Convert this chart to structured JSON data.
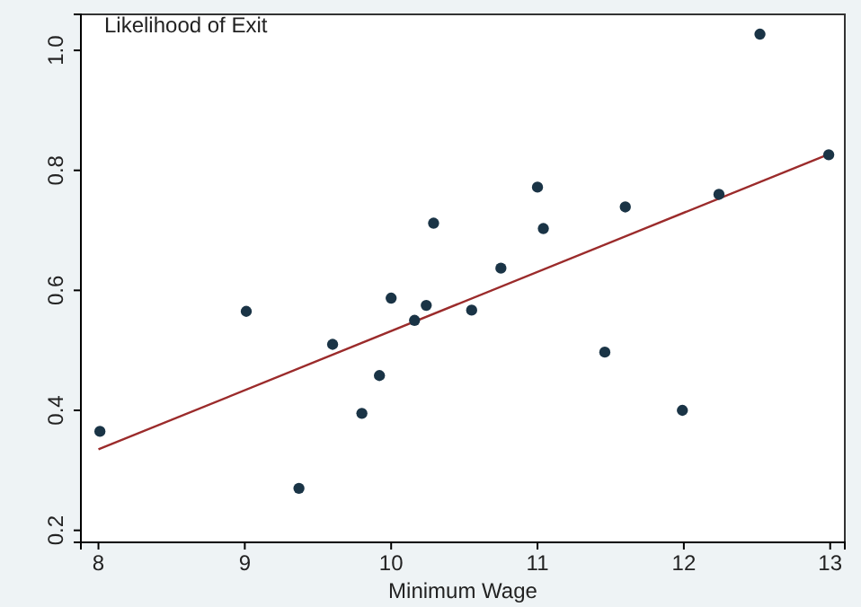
{
  "chart_data": {
    "type": "scatter",
    "title": "Likelihood of Exit",
    "xlabel": "Minimum Wage",
    "xlim": [
      7.88,
      13.1
    ],
    "ylim": [
      0.18,
      1.06
    ],
    "xticks": [
      8,
      9,
      10,
      11,
      12,
      13
    ],
    "yticks": [
      0.2,
      0.4,
      0.6,
      0.8,
      {
        "value": 1,
        "label": "1.0"
      }
    ],
    "grid": false,
    "series": [
      {
        "marker": "circle",
        "color": "#1a3446",
        "x": [
          8.01,
          9.01,
          9.37,
          9.6,
          9.8,
          9.92,
          10.0,
          10.16,
          10.24,
          10.29,
          10.55,
          10.75,
          11.0,
          11.04,
          11.46,
          11.6,
          11.99,
          12.24,
          12.52,
          12.99
        ],
        "values": [
          0.365,
          0.565,
          0.27,
          0.51,
          0.395,
          0.458,
          0.587,
          0.55,
          0.575,
          0.712,
          0.567,
          0.637,
          0.772,
          0.703,
          0.497,
          0.739,
          0.4,
          0.76,
          1.027,
          0.826
        ]
      },
      {
        "type": "line",
        "color": "#9b2b2b",
        "x": [
          8,
          13
        ],
        "values": [
          0.335,
          0.828
        ]
      }
    ]
  }
}
